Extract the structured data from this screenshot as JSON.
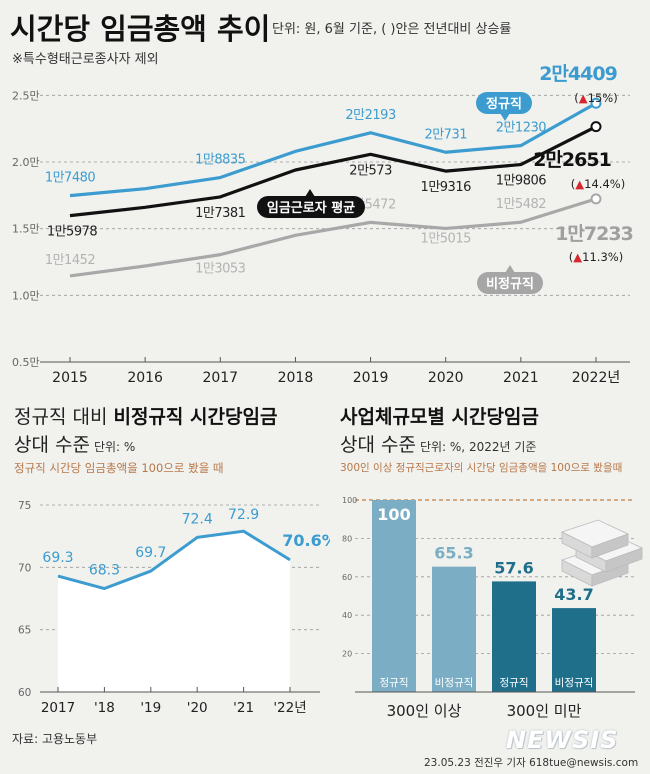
{
  "header": {
    "title": "시간당 임금총액 추이",
    "unit_note": "단위: 원, 6월 기준, ( )안은 전년대비 상승률",
    "footnote": "※특수형태근로종사자 제외"
  },
  "source": "자료: 고용노동부",
  "credit": "23.05.23 전진우 기자 618tue@newsis.com",
  "logo": "NEWSIS",
  "panel_left": {
    "title_plain": "정규직 대비 ",
    "title_bold": "비정규직 시간당임금",
    "title_line2": "상대 수준",
    "unit": "단위: %",
    "note": "정규직 시간당 임금총액을 100으로 봤을 때"
  },
  "panel_right": {
    "title_bold": "사업체규모별 시간당임금",
    "title_line2": "상대 수준",
    "unit": "단위: %, 2022년 기준",
    "note": "300인 이상 정규직근로자의 시간당 임금총액을 100으로 봤을때"
  },
  "colors": {
    "regular": "#3c9cd0",
    "average": "#111111",
    "nonregular": "#a8a8a8",
    "up_arrow": "#d7282f",
    "bar_light": "#7badc4",
    "bar_dark": "#1f6e8a",
    "ratio_line": "#3c9cd0",
    "ref_line": "#c9905d"
  },
  "chart_data": [
    {
      "type": "line",
      "x": [
        "2015",
        "2016",
        "2017",
        "2018",
        "2019",
        "2020",
        "2021",
        "2022년"
      ],
      "y_ticks": [
        "0.5만",
        "1.0만",
        "1.5만",
        "2.0만",
        "2.5만"
      ],
      "ylim": [
        0.5,
        2.6
      ],
      "grid": true,
      "series": [
        {
          "name": "정규직",
          "key": "regular",
          "values": [
            1.748,
            1.8,
            1.8835,
            2.08,
            2.2193,
            2.0731,
            2.123,
            2.4409
          ],
          "labels": [
            "1만7480",
            "",
            "1만8835",
            "",
            "2만2193",
            "2만731",
            "2만1230",
            "2만4409"
          ],
          "change": "15%"
        },
        {
          "name": "임금근로자 평균",
          "key": "average",
          "values": [
            1.5978,
            1.66,
            1.7381,
            1.94,
            2.0573,
            1.9316,
            1.9806,
            2.2651
          ],
          "labels": [
            "1만5978",
            "",
            "1만7381",
            "",
            "2만573",
            "1만9316",
            "1만9806",
            "2만2651"
          ],
          "change": "14.4%"
        },
        {
          "name": "비정규직",
          "key": "nonregular",
          "values": [
            1.1452,
            1.22,
            1.3053,
            1.45,
            1.5472,
            1.5015,
            1.5482,
            1.7233
          ],
          "labels": [
            "1만1452",
            "",
            "1만3053",
            "",
            "1만5472",
            "1만5015",
            "1만5482",
            "1만7233"
          ],
          "change": "11.3%"
        }
      ]
    },
    {
      "type": "area",
      "x": [
        "2017",
        "'18",
        "'19",
        "'20",
        "'21",
        "'22년"
      ],
      "values": [
        69.3,
        68.3,
        69.7,
        72.4,
        72.9,
        70.6
      ],
      "value_labels": [
        "69.3",
        "68.3",
        "69.7",
        "72.4",
        "72.9",
        "70.6%"
      ],
      "y_ticks": [
        "60",
        "65",
        "70",
        "75"
      ],
      "ylim": [
        60,
        75
      ],
      "grid": true
    },
    {
      "type": "bar",
      "groups": [
        "300인 이상",
        "300인 미만"
      ],
      "categories": [
        "정규직",
        "비정규직",
        "정규직",
        "비정규직"
      ],
      "values": [
        100,
        65.3,
        57.6,
        43.7
      ],
      "value_labels": [
        "100",
        "65.3",
        "57.6",
        "43.7"
      ],
      "y_ticks": [
        "0",
        "20",
        "40",
        "60",
        "80",
        "100"
      ],
      "ylim": [
        0,
        100
      ],
      "grid": true
    }
  ]
}
